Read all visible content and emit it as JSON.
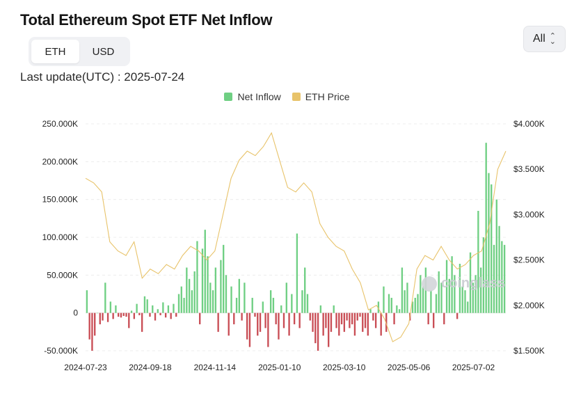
{
  "header": {
    "title": "Total Ethereum Spot ETF Net Inflow",
    "last_update_label": "Last update(UTC) : 2025-07-24",
    "unit_options": [
      "ETH",
      "USD"
    ],
    "unit_selected": "ETH",
    "range_value": "All",
    "watermark": "coinglass"
  },
  "chart_data": {
    "type": "bar+line",
    "title": "Total Ethereum Spot ETF Net Inflow",
    "legend": [
      {
        "name": "Net Inflow",
        "color": "#6fcf83"
      },
      {
        "name": "ETH Price",
        "color": "#e8c36a"
      }
    ],
    "x_tick_labels": [
      "2024-07-23",
      "2024-09-18",
      "2024-11-14",
      "2025-01-10",
      "2025-03-10",
      "2025-05-06",
      "2025-07-02"
    ],
    "x_tick_week_index": [
      0,
      8,
      16,
      24,
      32,
      40,
      48
    ],
    "y_left": {
      "ticks": [
        -50000,
        0,
        50000,
        100000,
        150000,
        200000,
        250000
      ],
      "labels": [
        "-50.000K",
        "0",
        "50.000K",
        "100.000K",
        "150.000K",
        "200.000K",
        "250.000K"
      ],
      "range": [
        -50000,
        250000
      ]
    },
    "y_right": {
      "ticks": [
        1500,
        2000,
        2500,
        3000,
        3500,
        4000
      ],
      "labels": [
        "$1.500K",
        "$2.000K",
        "$2.500K",
        "$3.000K",
        "$3.500K",
        "$4.000K"
      ],
      "range": [
        1500,
        4000
      ]
    },
    "net_inflow_weekly_eth": [
      [
        30000,
        -35000,
        -50000,
        -30000,
        0
      ],
      [
        -15000,
        -10000,
        40000,
        -12000,
        15000
      ],
      [
        -8000,
        10000,
        -5000,
        -6000,
        -4000
      ],
      [
        -5000,
        -20000,
        3000,
        -8000,
        12000
      ],
      [
        -3000,
        -25000,
        22000,
        18000,
        -5000
      ],
      [
        10000,
        -10000,
        5000,
        -3000,
        14000
      ],
      [
        -6000,
        10000,
        -8000,
        12000,
        -5000
      ],
      [
        25000,
        35000,
        20000,
        60000,
        45000
      ],
      [
        30000,
        55000,
        95000,
        -15000,
        85000
      ],
      [
        110000,
        75000,
        40000,
        30000,
        60000
      ],
      [
        -25000,
        70000,
        90000,
        50000,
        -30000
      ],
      [
        35000,
        -15000,
        20000,
        45000,
        -10000
      ],
      [
        40000,
        -35000,
        -45000,
        20000,
        -5000
      ],
      [
        -30000,
        -25000,
        15000,
        -20000,
        -45000
      ],
      [
        30000,
        20000,
        -15000,
        -35000,
        10000
      ],
      [
        -20000,
        40000,
        -30000,
        25000,
        -15000
      ],
      [
        105000,
        -20000,
        30000,
        60000,
        25000
      ],
      [
        -10000,
        -25000,
        -40000,
        -50000,
        10000
      ],
      [
        -30000,
        -20000,
        -45000,
        -25000,
        10000
      ],
      [
        -20000,
        -30000,
        -15000,
        -25000,
        -10000
      ],
      [
        -20000,
        -15000,
        -30000,
        -10000,
        -5000
      ],
      [
        -25000,
        -20000,
        -30000,
        5000,
        -10000
      ],
      [
        -20000,
        15000,
        -30000,
        35000,
        -25000
      ],
      [
        25000,
        20000,
        -15000,
        10000,
        5000
      ],
      [
        60000,
        30000,
        40000,
        -10000,
        15000
      ],
      [
        20000,
        25000,
        50000,
        35000,
        60000
      ],
      [
        -15000,
        30000,
        -20000,
        25000,
        55000
      ],
      [
        40000,
        -15000,
        70000,
        45000,
        75000
      ],
      [
        50000,
        -8000,
        65000,
        35000,
        30000
      ],
      [
        15000,
        80000,
        40000,
        50000,
        135000
      ],
      [
        60000,
        100000,
        225000,
        185000,
        170000
      ],
      [
        90000,
        150000,
        115000,
        95000,
        90000
      ]
    ],
    "eth_price_usd_weekly": [
      3400,
      3350,
      3250,
      2700,
      2600,
      2550,
      2700,
      2300,
      2400,
      2350,
      2450,
      2400,
      2550,
      2650,
      2600,
      2500,
      2600,
      3000,
      3400,
      3600,
      3700,
      3650,
      3750,
      3900,
      3600,
      3300,
      3250,
      3350,
      3250,
      2900,
      2750,
      2650,
      2600,
      2400,
      2250,
      1950,
      2000,
      1850,
      1600,
      1650,
      1800,
      2400,
      2550,
      2500,
      2650,
      2500,
      2400,
      2450,
      2550,
      2600,
      2900,
      3500,
      3700
    ],
    "price_values_are_estimates": true
  }
}
